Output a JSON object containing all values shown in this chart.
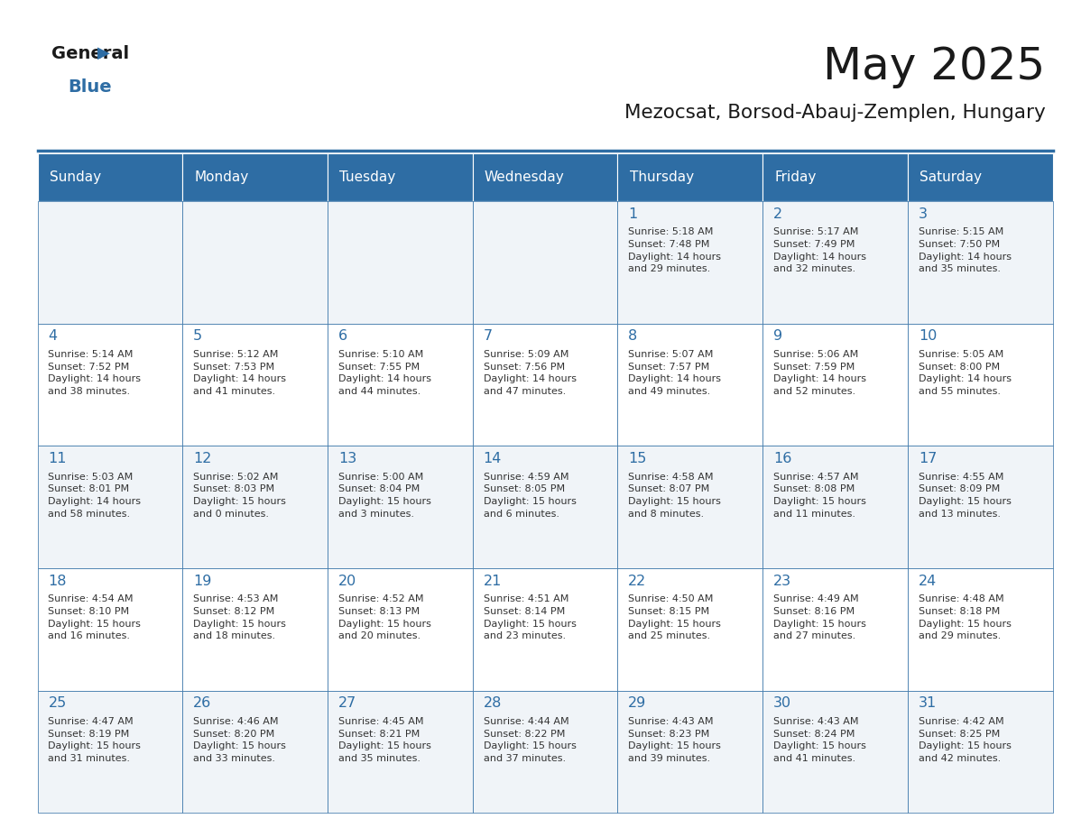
{
  "title": "May 2025",
  "subtitle": "Mezocsat, Borsod-Abauj-Zemplen, Hungary",
  "days_of_week": [
    "Sunday",
    "Monday",
    "Tuesday",
    "Wednesday",
    "Thursday",
    "Friday",
    "Saturday"
  ],
  "header_bg": "#2E6DA4",
  "header_text": "#FFFFFF",
  "cell_bg_light": "#F0F4F8",
  "cell_bg_white": "#FFFFFF",
  "day_number_color": "#2E6DA4",
  "text_color": "#333333",
  "line_color": "#2E6DA4",
  "calendar_data": [
    [
      "",
      "",
      "",
      "",
      "1\nSunrise: 5:18 AM\nSunset: 7:48 PM\nDaylight: 14 hours\nand 29 minutes.",
      "2\nSunrise: 5:17 AM\nSunset: 7:49 PM\nDaylight: 14 hours\nand 32 minutes.",
      "3\nSunrise: 5:15 AM\nSunset: 7:50 PM\nDaylight: 14 hours\nand 35 minutes."
    ],
    [
      "4\nSunrise: 5:14 AM\nSunset: 7:52 PM\nDaylight: 14 hours\nand 38 minutes.",
      "5\nSunrise: 5:12 AM\nSunset: 7:53 PM\nDaylight: 14 hours\nand 41 minutes.",
      "6\nSunrise: 5:10 AM\nSunset: 7:55 PM\nDaylight: 14 hours\nand 44 minutes.",
      "7\nSunrise: 5:09 AM\nSunset: 7:56 PM\nDaylight: 14 hours\nand 47 minutes.",
      "8\nSunrise: 5:07 AM\nSunset: 7:57 PM\nDaylight: 14 hours\nand 49 minutes.",
      "9\nSunrise: 5:06 AM\nSunset: 7:59 PM\nDaylight: 14 hours\nand 52 minutes.",
      "10\nSunrise: 5:05 AM\nSunset: 8:00 PM\nDaylight: 14 hours\nand 55 minutes."
    ],
    [
      "11\nSunrise: 5:03 AM\nSunset: 8:01 PM\nDaylight: 14 hours\nand 58 minutes.",
      "12\nSunrise: 5:02 AM\nSunset: 8:03 PM\nDaylight: 15 hours\nand 0 minutes.",
      "13\nSunrise: 5:00 AM\nSunset: 8:04 PM\nDaylight: 15 hours\nand 3 minutes.",
      "14\nSunrise: 4:59 AM\nSunset: 8:05 PM\nDaylight: 15 hours\nand 6 minutes.",
      "15\nSunrise: 4:58 AM\nSunset: 8:07 PM\nDaylight: 15 hours\nand 8 minutes.",
      "16\nSunrise: 4:57 AM\nSunset: 8:08 PM\nDaylight: 15 hours\nand 11 minutes.",
      "17\nSunrise: 4:55 AM\nSunset: 8:09 PM\nDaylight: 15 hours\nand 13 minutes."
    ],
    [
      "18\nSunrise: 4:54 AM\nSunset: 8:10 PM\nDaylight: 15 hours\nand 16 minutes.",
      "19\nSunrise: 4:53 AM\nSunset: 8:12 PM\nDaylight: 15 hours\nand 18 minutes.",
      "20\nSunrise: 4:52 AM\nSunset: 8:13 PM\nDaylight: 15 hours\nand 20 minutes.",
      "21\nSunrise: 4:51 AM\nSunset: 8:14 PM\nDaylight: 15 hours\nand 23 minutes.",
      "22\nSunrise: 4:50 AM\nSunset: 8:15 PM\nDaylight: 15 hours\nand 25 minutes.",
      "23\nSunrise: 4:49 AM\nSunset: 8:16 PM\nDaylight: 15 hours\nand 27 minutes.",
      "24\nSunrise: 4:48 AM\nSunset: 8:18 PM\nDaylight: 15 hours\nand 29 minutes."
    ],
    [
      "25\nSunrise: 4:47 AM\nSunset: 8:19 PM\nDaylight: 15 hours\nand 31 minutes.",
      "26\nSunrise: 4:46 AM\nSunset: 8:20 PM\nDaylight: 15 hours\nand 33 minutes.",
      "27\nSunrise: 4:45 AM\nSunset: 8:21 PM\nDaylight: 15 hours\nand 35 minutes.",
      "28\nSunrise: 4:44 AM\nSunset: 8:22 PM\nDaylight: 15 hours\nand 37 minutes.",
      "29\nSunrise: 4:43 AM\nSunset: 8:23 PM\nDaylight: 15 hours\nand 39 minutes.",
      "30\nSunrise: 4:43 AM\nSunset: 8:24 PM\nDaylight: 15 hours\nand 41 minutes.",
      "31\nSunrise: 4:42 AM\nSunset: 8:25 PM\nDaylight: 15 hours\nand 42 minutes."
    ]
  ]
}
